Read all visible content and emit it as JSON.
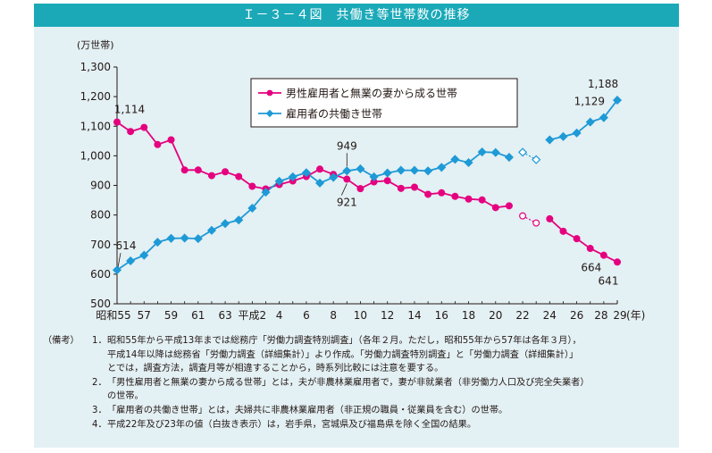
{
  "title": "Ｉ－３－４図　共働き等世帯数の推移",
  "colors": {
    "frame_bg": "#e3f0f4",
    "title_bg": "#1ba9b8",
    "male_series": "#e5007f",
    "dual_series": "#1e9ad6"
  },
  "chart_data": {
    "type": "line",
    "ylabel": "(万世帯)",
    "xlabel": "(年)",
    "ylim": [
      500,
      1300
    ],
    "yticks": [
      "1,300",
      "1,200",
      "1,100",
      "1,000",
      "900",
      "800",
      "700",
      "600",
      "500"
    ],
    "ytick_values": [
      1300,
      1200,
      1100,
      1000,
      900,
      800,
      700,
      600,
      500
    ],
    "grid": false,
    "legend_position": "top-center",
    "x": [
      1980,
      1981,
      1982,
      1983,
      1984,
      1985,
      1986,
      1987,
      1988,
      1989,
      1990,
      1991,
      1992,
      1993,
      1994,
      1995,
      1996,
      1997,
      1998,
      1999,
      2000,
      2001,
      2002,
      2003,
      2004,
      2005,
      2006,
      2007,
      2008,
      2009,
      2010,
      2011,
      2012,
      2013,
      2014,
      2015,
      2016,
      2017
    ],
    "xticks": [
      {
        "year": 1980,
        "label": "昭和55"
      },
      {
        "year": 1982,
        "label": "57"
      },
      {
        "year": 1984,
        "label": "59"
      },
      {
        "year": 1986,
        "label": "61"
      },
      {
        "year": 1988,
        "label": "63"
      },
      {
        "year": 1990,
        "label": "平成2"
      },
      {
        "year": 1992,
        "label": "4"
      },
      {
        "year": 1994,
        "label": "6"
      },
      {
        "year": 1996,
        "label": "8"
      },
      {
        "year": 1998,
        "label": "10"
      },
      {
        "year": 2000,
        "label": "12"
      },
      {
        "year": 2002,
        "label": "14"
      },
      {
        "year": 2004,
        "label": "16"
      },
      {
        "year": 2006,
        "label": "18"
      },
      {
        "year": 2008,
        "label": "20"
      },
      {
        "year": 2010,
        "label": "22"
      },
      {
        "year": 2012,
        "label": "24"
      },
      {
        "year": 2014,
        "label": "26"
      },
      {
        "year": 2016,
        "label": "28"
      },
      {
        "year": 2017,
        "label": "29"
      }
    ],
    "gap_years": [
      2010,
      2011
    ],
    "series": [
      {
        "name": "男性雇用者と無業の妻から成る世帯",
        "values": [
          1114,
          1082,
          1096,
          1038,
          1054,
          952,
          952,
          933,
          946,
          930,
          897,
          888,
          903,
          915,
          930,
          955,
          937,
          921,
          889,
          912,
          916,
          890,
          894,
          870,
          875,
          863,
          854,
          851,
          825,
          831,
          797,
          773,
          787,
          745,
          720,
          687,
          664,
          641
        ]
      },
      {
        "name": "雇用者の共働き世帯",
        "values": [
          614,
          645,
          664,
          708,
          721,
          722,
          720,
          748,
          771,
          783,
          823,
          877,
          914,
          929,
          943,
          908,
          927,
          949,
          956,
          929,
          942,
          951,
          951,
          949,
          961,
          988,
          977,
          1013,
          1011,
          995,
          1012,
          987,
          1054,
          1065,
          1077,
          1114,
          1129,
          1188
        ]
      }
    ],
    "data_labels": [
      {
        "series": 0,
        "year": 1980,
        "text": "1,114"
      },
      {
        "series": 1,
        "year": 1980,
        "text": "614"
      },
      {
        "series": 1,
        "year": 1997,
        "text": "949"
      },
      {
        "series": 0,
        "year": 1997,
        "text": "921"
      },
      {
        "series": 1,
        "year": 2016,
        "text": "1,129"
      },
      {
        "series": 1,
        "year": 2017,
        "text": "1,188"
      },
      {
        "series": 0,
        "year": 2016,
        "text": "664"
      },
      {
        "series": 0,
        "year": 2017,
        "text": "641"
      }
    ]
  },
  "notes": {
    "label": "（備考）",
    "items": [
      {
        "num": "1．",
        "lines": [
          "昭和55年から平成13年までは総務庁「労働力調査特別調査」（各年２月。ただし，昭和55年から57年は各年３月），",
          "平成14年以降は総務省「労働力調査（詳細集計）」より作成。「労働力調査特別調査」と「労働力調査（詳細集計）」",
          "とでは，調査方法，調査月等が相違することから，時系列比較には注意を要する。"
        ]
      },
      {
        "num": "2．",
        "lines": [
          "「男性雇用者と無業の妻から成る世帯」とは，夫が非農林業雇用者で，妻が非就業者（非労働力人口及び完全失業者）",
          "の世帯。"
        ]
      },
      {
        "num": "3．",
        "lines": [
          "「雇用者の共働き世帯」とは，夫婦共に非農林業雇用者（非正規の職員・従業員を含む）の世帯。"
        ]
      },
      {
        "num": "4．",
        "lines": [
          "平成22年及び23年の値（白抜き表示）は，岩手県，宮城県及び福島県を除く全国の結果。"
        ]
      }
    ]
  }
}
